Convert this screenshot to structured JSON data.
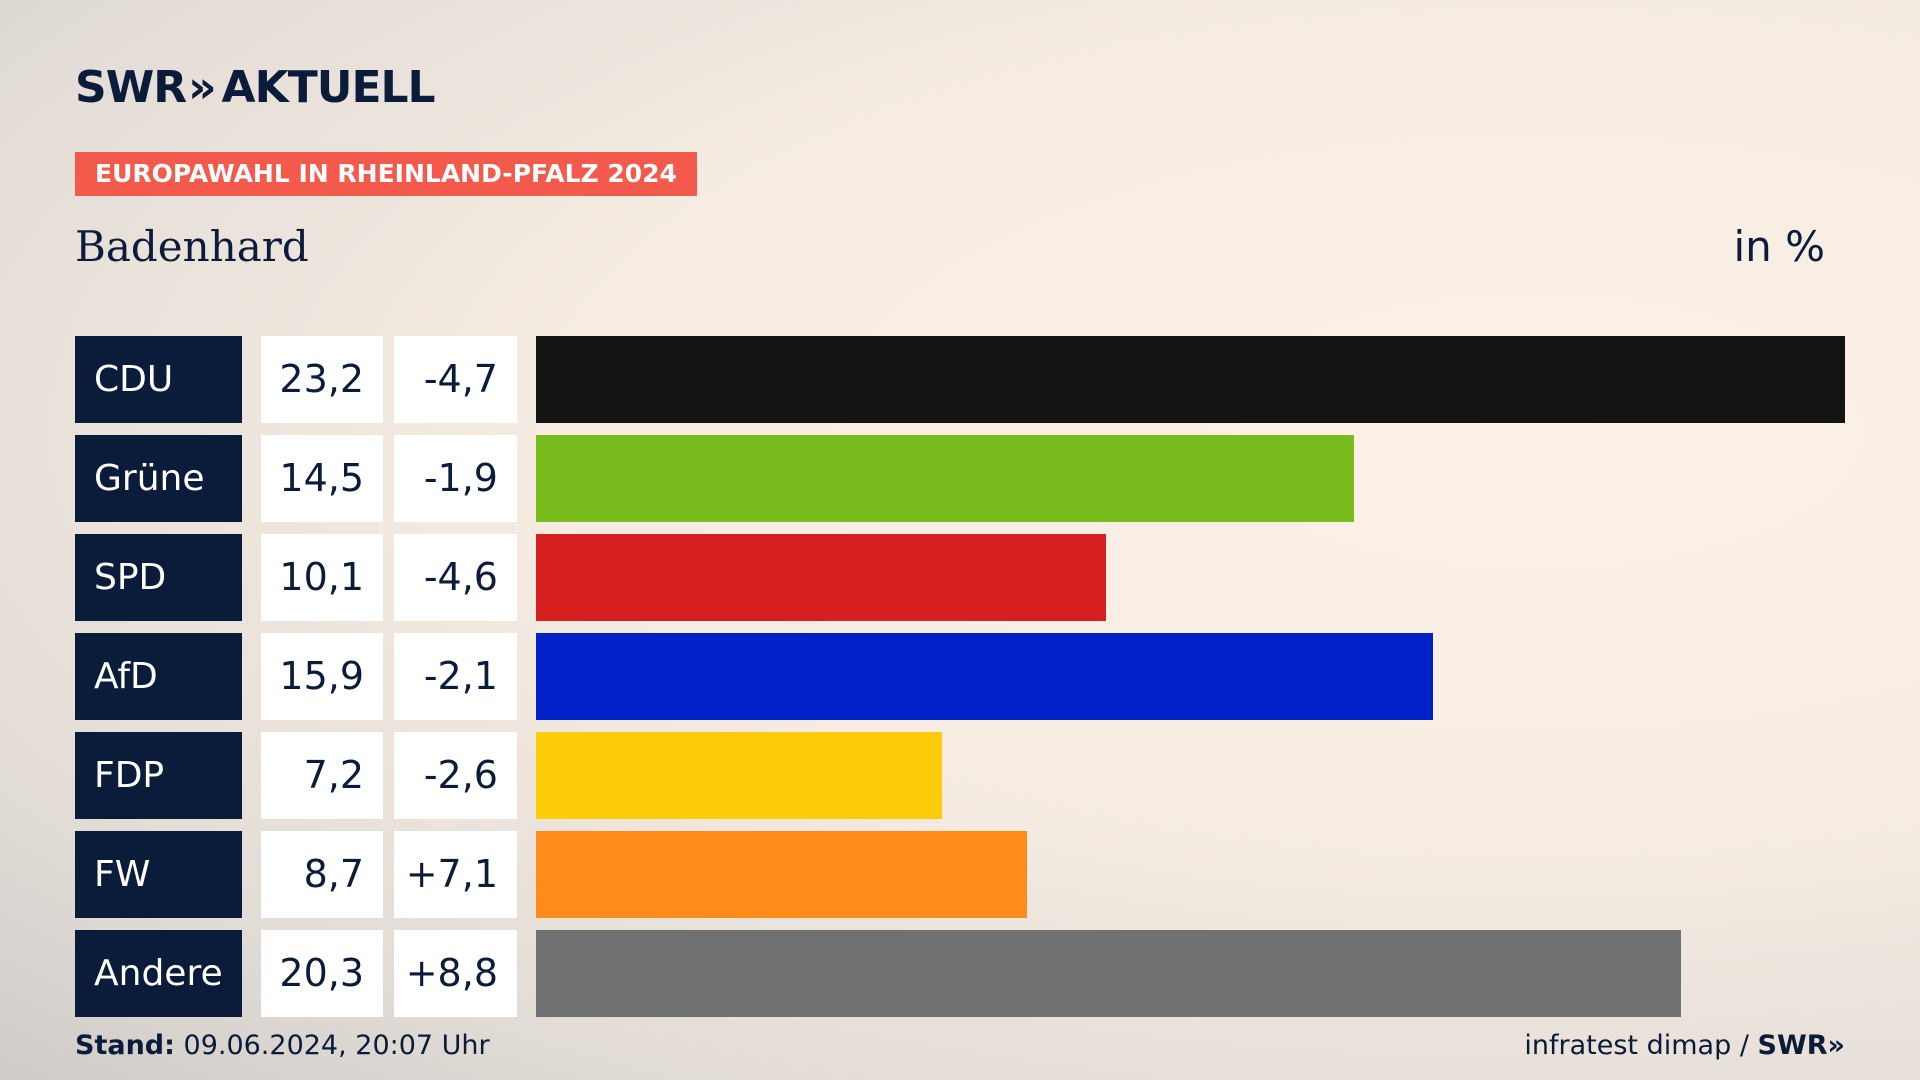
{
  "brand": {
    "swr": "SWR",
    "chevrons": "»",
    "aktuell": "AKTUELL"
  },
  "kicker": "EUROPAWAHL IN RHEINLAND-PFALZ 2024",
  "subtitle": "Badenhard",
  "unit": "in %",
  "footer": {
    "stand_label": "Stand:",
    "stand_value": "09.06.2024, 20:07 Uhr",
    "source": "infratest dimap",
    "separator": "/",
    "brand": "SWR",
    "brand_chevrons": "»"
  },
  "colors": {
    "navy": "#0b1b3a",
    "kicker_red": "#f45a4b"
  },
  "chart_data": {
    "type": "bar",
    "orientation": "horizontal",
    "categories": [
      "CDU",
      "Grüne",
      "SPD",
      "AfD",
      "FDP",
      "FW",
      "Andere"
    ],
    "values": [
      23.2,
      14.5,
      10.1,
      15.9,
      7.2,
      8.7,
      20.3
    ],
    "value_labels": [
      "23,2",
      "14,5",
      "10,1",
      "15,9",
      "7,2",
      "8,7",
      "20,3"
    ],
    "changes": [
      -4.7,
      -1.9,
      -4.6,
      -2.1,
      -2.6,
      7.1,
      8.8
    ],
    "change_labels": [
      "-4,7",
      "-1,9",
      "-4,6",
      "-2,1",
      "-2,6",
      "+7,1",
      "+8,8"
    ],
    "bar_colors": [
      "#141414",
      "#78bc1e",
      "#d71f1f",
      "#0021c8",
      "#ffcc0a",
      "#ff8c1a",
      "#707173"
    ],
    "xlim": [
      0,
      23.2
    ],
    "grid": false
  }
}
